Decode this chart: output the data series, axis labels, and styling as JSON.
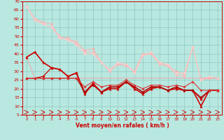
{
  "xlabel": "Vent moyen/en rafales ( km/h )",
  "xlim": [
    -0.5,
    23.5
  ],
  "ylim": [
    5,
    70
  ],
  "yticks": [
    5,
    10,
    15,
    20,
    25,
    30,
    35,
    40,
    45,
    50,
    55,
    60,
    65,
    70
  ],
  "xticks": [
    0,
    1,
    2,
    3,
    4,
    5,
    6,
    7,
    8,
    9,
    10,
    11,
    12,
    13,
    14,
    15,
    16,
    17,
    18,
    19,
    20,
    21,
    22,
    23
  ],
  "background_color": "#b8e8e0",
  "grid_color": "#90c8c0",
  "series": [
    {
      "color": "#ffb0b0",
      "linewidth": 0.7,
      "marker": "D",
      "markersize": 1.8,
      "values": [
        67,
        60,
        58,
        57,
        49,
        49,
        46,
        42,
        43,
        35,
        30,
        34,
        33,
        30,
        40,
        40,
        35,
        33,
        30,
        28,
        44,
        25,
        26,
        26
      ]
    },
    {
      "color": "#ffbbbb",
      "linewidth": 0.7,
      "marker": "D",
      "markersize": 1.8,
      "values": [
        67,
        60,
        57,
        55,
        50,
        48,
        47,
        41,
        41,
        35,
        30,
        34,
        34,
        29,
        39,
        40,
        34,
        33,
        28,
        27,
        44,
        25,
        26,
        26
      ]
    },
    {
      "color": "#ffcccc",
      "linewidth": 0.7,
      "marker": "D",
      "markersize": 1.8,
      "values": [
        67,
        59,
        57,
        55,
        49,
        48,
        45,
        40,
        40,
        35,
        31,
        35,
        34,
        29,
        39,
        41,
        35,
        34,
        29,
        29,
        44,
        25,
        27,
        26
      ]
    },
    {
      "color": "#ff9999",
      "linewidth": 0.6,
      "marker": null,
      "markersize": 0,
      "values": [
        38,
        26,
        26,
        26,
        26,
        26,
        26,
        26,
        26,
        26,
        26,
        26,
        26,
        26,
        26,
        26,
        26,
        26,
        26,
        26,
        26,
        26,
        26,
        26
      ]
    },
    {
      "color": "#cc0000",
      "linewidth": 1.2,
      "marker": "^",
      "markersize": 2.5,
      "values": [
        38,
        41,
        35,
        32,
        31,
        27,
        29,
        17,
        23,
        18,
        20,
        20,
        24,
        20,
        17,
        20,
        21,
        19,
        20,
        19,
        19,
        10,
        19,
        19
      ]
    },
    {
      "color": "#cc0000",
      "linewidth": 0.9,
      "marker": "D",
      "markersize": 1.8,
      "values": [
        26,
        26,
        27,
        32,
        31,
        27,
        29,
        18,
        23,
        18,
        21,
        21,
        24,
        21,
        18,
        21,
        21,
        19,
        21,
        19,
        19,
        14,
        19,
        19
      ]
    },
    {
      "color": "#aa0000",
      "linewidth": 0.8,
      "marker": "D",
      "markersize": 1.8,
      "values": [
        26,
        26,
        26,
        26,
        26,
        26,
        26,
        18,
        22,
        18,
        21,
        21,
        24,
        21,
        18,
        21,
        21,
        19,
        21,
        19,
        19,
        15,
        19,
        19
      ]
    },
    {
      "color": "#dd3333",
      "linewidth": 0.8,
      "marker": "D",
      "markersize": 1.8,
      "values": [
        26,
        26,
        26,
        26,
        26,
        26,
        26,
        21,
        24,
        21,
        22,
        22,
        25,
        22,
        20,
        22,
        22,
        21,
        22,
        21,
        24,
        19,
        19,
        19
      ]
    }
  ],
  "arrow_color": "#cc0000",
  "text_color": "#cc0000"
}
